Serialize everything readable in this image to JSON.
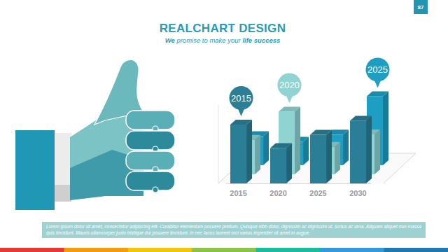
{
  "page": {
    "title": "REALCHART DESIGN",
    "subtitle": "We promise to make your life success",
    "page_number": 87,
    "footer": "Lorem ipsum dolor sit amet, consectetur adipiscing elit. Curabitur elementum posuere pretium. Quisque nibh dolor, dignissim ac dignissim ut, luctus ac urna. Aliquam aliquet non massa quis tincidunt. Mauris ullamcorper justo tristique dui posuere tincidunt. In nec lacus laoreet orci varius imperdiet sit amet in augue."
  },
  "chart_data": {
    "type": "bar",
    "categories": [
      "2015",
      "2020",
      "2025",
      "2030"
    ],
    "series": [
      {
        "color": "#2a7f96",
        "values": [
          75,
          45,
          62,
          80
        ]
      },
      {
        "color": "#8fd3d3",
        "values": [
          44,
          80,
          35,
          51
        ]
      },
      {
        "color": "#1f9ec3",
        "values": [
          37,
          30,
          39,
          88
        ]
      }
    ],
    "ylim": [
      0,
      100
    ],
    "tick_labels": "x",
    "annotations": [
      {
        "text": "2015",
        "category": "2015",
        "series": 0
      },
      {
        "text": "2020",
        "category": "2020",
        "series": 1
      },
      {
        "text": "2025",
        "category": "2030",
        "series": 2
      }
    ]
  }
}
